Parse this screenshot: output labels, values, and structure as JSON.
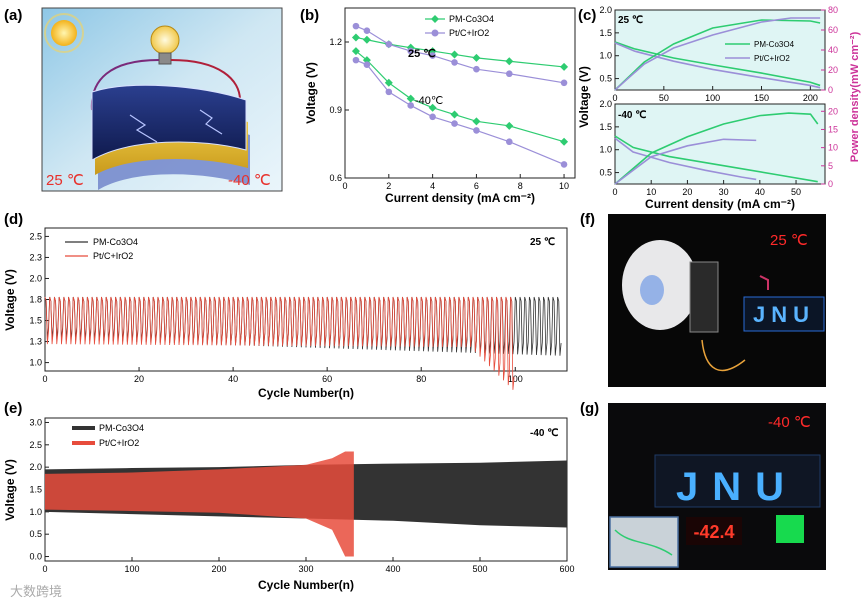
{
  "panels": {
    "a": {
      "label": "(a)",
      "temp_warm": "25 ℃",
      "temp_cold": "-40 ℃"
    },
    "f": {
      "label": "(f)",
      "temp": "25 ℃",
      "sign_text": "JNU"
    },
    "g": {
      "label": "(g)",
      "temp": "-40 ℃",
      "sign_text": "JNU",
      "display_value": "-42.4"
    }
  },
  "watermark": "大数跨境",
  "colors": {
    "green": "#2ecc71",
    "purple": "#9b8fd8",
    "red": "#e74c3c",
    "black": "#333333",
    "pink": "#cc3399"
  },
  "chart_data": [
    {
      "id": "b",
      "label": "(b)",
      "type": "line",
      "xlabel": "Current density (mA cm⁻²)",
      "ylabel": "Voltage (V)",
      "xlim": [
        0,
        10.5
      ],
      "ylim": [
        0.6,
        1.35
      ],
      "xticks": [
        0,
        2,
        4,
        6,
        8,
        10
      ],
      "yticks": [
        0.6,
        0.9,
        1.2
      ],
      "annotations": [
        "25 ℃",
        "-40℃"
      ],
      "series": [
        {
          "name": "PM-Co₃O₄ 25",
          "legend": "PM-Co3O4",
          "color": "#2ecc71",
          "marker": "diamond",
          "x": [
            0.5,
            1,
            2,
            3,
            4,
            5,
            6,
            7.5,
            10
          ],
          "y": [
            1.22,
            1.21,
            1.19,
            1.175,
            1.16,
            1.145,
            1.13,
            1.115,
            1.09
          ]
        },
        {
          "name": "Pt/C+IrO₂ 25",
          "legend": "Pt/C+IrO2",
          "color": "#9b8fd8",
          "marker": "circle",
          "x": [
            0.5,
            1,
            2,
            3,
            4,
            5,
            6,
            7.5,
            10
          ],
          "y": [
            1.27,
            1.25,
            1.19,
            1.16,
            1.14,
            1.11,
            1.08,
            1.06,
            1.02
          ]
        },
        {
          "name": "PM-Co₃O₄ -40",
          "color": "#2ecc71",
          "marker": "diamond",
          "x": [
            0.5,
            1,
            2,
            3,
            4,
            5,
            6,
            7.5,
            10
          ],
          "y": [
            1.16,
            1.12,
            1.02,
            0.95,
            0.91,
            0.88,
            0.85,
            0.83,
            0.76
          ]
        },
        {
          "name": "Pt/C+IrO₂ -40",
          "color": "#9b8fd8",
          "marker": "circle",
          "x": [
            0.5,
            1,
            2,
            3,
            4,
            5,
            6,
            7.5,
            10
          ],
          "y": [
            1.12,
            1.1,
            0.98,
            0.92,
            0.87,
            0.84,
            0.81,
            0.76,
            0.66
          ]
        }
      ]
    },
    {
      "id": "c",
      "label": "(c)",
      "type": "line",
      "ylabel": "Voltage (V)",
      "y2label": "Power density(mW cm⁻²)",
      "xlabel": "Current density (mA cm⁻²)",
      "legend": [
        "PM-Co3O4",
        "Pt/C+IrO2"
      ],
      "subplots": [
        {
          "annotation": "25 ℃",
          "xlim": [
            0,
            215
          ],
          "ylim": [
            0.25,
            2.0
          ],
          "y2lim": [
            0,
            80
          ],
          "xticks": [
            0,
            50,
            100,
            150,
            200
          ],
          "yticks": [
            0.5,
            1.0,
            1.5,
            2.0
          ],
          "y2ticks": [
            0,
            20,
            40,
            60,
            80
          ],
          "series": [
            {
              "name": "PM V",
              "color": "#2ecc71",
              "x": [
                0,
                20,
                60,
                100,
                150,
                200,
                210
              ],
              "y": [
                1.3,
                1.15,
                0.95,
                0.8,
                0.62,
                0.42,
                0.35
              ]
            },
            {
              "name": "Pt V",
              "color": "#9b8fd8",
              "x": [
                0,
                20,
                60,
                100,
                150,
                200,
                210
              ],
              "y": [
                1.28,
                1.1,
                0.88,
                0.7,
                0.52,
                0.35,
                0.3
              ]
            },
            {
              "name": "PM P",
              "color": "#2ecc71",
              "axis": "y2",
              "x": [
                0,
                30,
                60,
                100,
                150,
                200,
                210
              ],
              "y": [
                0,
                28,
                46,
                62,
                70,
                69,
                67
              ]
            },
            {
              "name": "Pt P",
              "color": "#9b8fd8",
              "axis": "y2",
              "x": [
                0,
                30,
                60,
                100,
                150,
                180,
                210
              ],
              "y": [
                0,
                26,
                42,
                55,
                68,
                72,
                72
              ]
            }
          ]
        },
        {
          "annotation": "-40 ℃",
          "xlim": [
            0,
            58
          ],
          "ylim": [
            0.25,
            2.0
          ],
          "y2lim": [
            0,
            22
          ],
          "xticks": [
            0,
            10,
            20,
            30,
            40,
            50
          ],
          "yticks": [
            0.5,
            1.0,
            1.5,
            2.0
          ],
          "y2ticks": [
            0,
            5,
            10,
            15,
            20
          ],
          "series": [
            {
              "name": "PM V",
              "color": "#2ecc71",
              "x": [
                0,
                5,
                15,
                30,
                45,
                56
              ],
              "y": [
                1.3,
                1.05,
                0.85,
                0.65,
                0.45,
                0.3
              ]
            },
            {
              "name": "Pt V",
              "color": "#9b8fd8",
              "x": [
                0,
                5,
                15,
                25,
                35,
                39
              ],
              "y": [
                1.25,
                0.95,
                0.72,
                0.55,
                0.4,
                0.35
              ]
            },
            {
              "name": "PM P",
              "color": "#2ecc71",
              "axis": "y2",
              "x": [
                0,
                10,
                20,
                30,
                40,
                48,
                54,
                56
              ],
              "y": [
                0,
                8.5,
                13,
                16.5,
                18.8,
                19.5,
                19.2,
                16.5
              ]
            },
            {
              "name": "Pt P",
              "color": "#9b8fd8",
              "axis": "y2",
              "x": [
                0,
                10,
                20,
                30,
                39
              ],
              "y": [
                0,
                7.5,
                10.5,
                12.3,
                12.0
              ]
            }
          ]
        }
      ]
    },
    {
      "id": "d",
      "label": "(d)",
      "type": "line",
      "title": "25 ℃",
      "xlabel": "Cycle Number(n)",
      "ylabel": "Voltage (V)",
      "xlim": [
        0,
        111
      ],
      "ylim": [
        0.9,
        2.6
      ],
      "xticks": [
        0,
        20,
        40,
        60,
        80,
        100
      ],
      "yticks": [
        1.0,
        1.25,
        1.5,
        1.75,
        2.0,
        2.25,
        2.5
      ],
      "legend": [
        "PM-Co3O4",
        "Pt/C+IrO2"
      ],
      "series": [
        {
          "name": "PM-Co₃O₄",
          "color": "#333333",
          "cycles": 110,
          "charge_v": 1.78,
          "discharge_v_start": 1.28,
          "discharge_v_end": 1.08
        },
        {
          "name": "Pt/C+IrO₂",
          "color": "#e74c3c",
          "cycles": 100,
          "charge_v": 1.78,
          "discharge_v_start": 1.22,
          "discharge_v_end": 1.18,
          "fail_start": 90,
          "fail_min_v": 0.62
        }
      ]
    },
    {
      "id": "e",
      "label": "(e)",
      "type": "area",
      "title": "-40 ℃",
      "xlabel": "Cycle Number(n)",
      "ylabel": "Voltage (V)",
      "xlim": [
        0,
        600
      ],
      "ylim": [
        -0.1,
        3.1
      ],
      "xticks": [
        0,
        100,
        200,
        300,
        400,
        500,
        600
      ],
      "yticks": [
        0.0,
        0.5,
        1.0,
        1.5,
        2.0,
        2.5,
        3.0
      ],
      "legend": [
        "PM-Co3O4",
        "Pt/C+IrO2"
      ],
      "series": [
        {
          "name": "PM-Co₃O₄",
          "color": "#333333",
          "x": [
            0,
            100,
            200,
            300,
            400,
            500,
            600
          ],
          "upper": [
            1.95,
            1.98,
            2.0,
            2.05,
            2.08,
            2.1,
            2.15
          ],
          "lower": [
            1.0,
            0.95,
            0.9,
            0.85,
            0.8,
            0.7,
            0.65
          ]
        },
        {
          "name": "Pt/C+IrO₂",
          "color": "#e74c3c",
          "x": [
            0,
            100,
            200,
            300,
            330,
            345,
            350,
            355
          ],
          "upper": [
            1.85,
            1.88,
            1.95,
            2.05,
            2.2,
            2.35,
            2.35,
            2.35
          ],
          "lower": [
            1.05,
            1.02,
            0.98,
            0.85,
            0.6,
            0.0,
            0.0,
            0.0
          ]
        }
      ]
    }
  ]
}
